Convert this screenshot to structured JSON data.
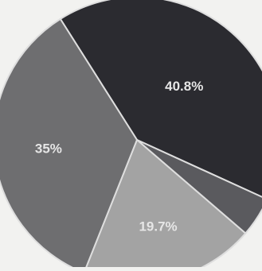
{
  "chart_data": {
    "type": "pie",
    "slices": [
      {
        "label": "40.8%",
        "value": 40.8,
        "color": "#2b2b30"
      },
      {
        "label": "",
        "value": 4.5,
        "color": "#5a5a5e"
      },
      {
        "label": "19.7%",
        "value": 19.7,
        "color": "#a3a3a3"
      },
      {
        "label": "35%",
        "value": 35.0,
        "color": "#6e6e70"
      }
    ],
    "start_angle_deg": -122.3,
    "label_color": "#e6e6e6",
    "slice_stroke": "#dedede"
  }
}
